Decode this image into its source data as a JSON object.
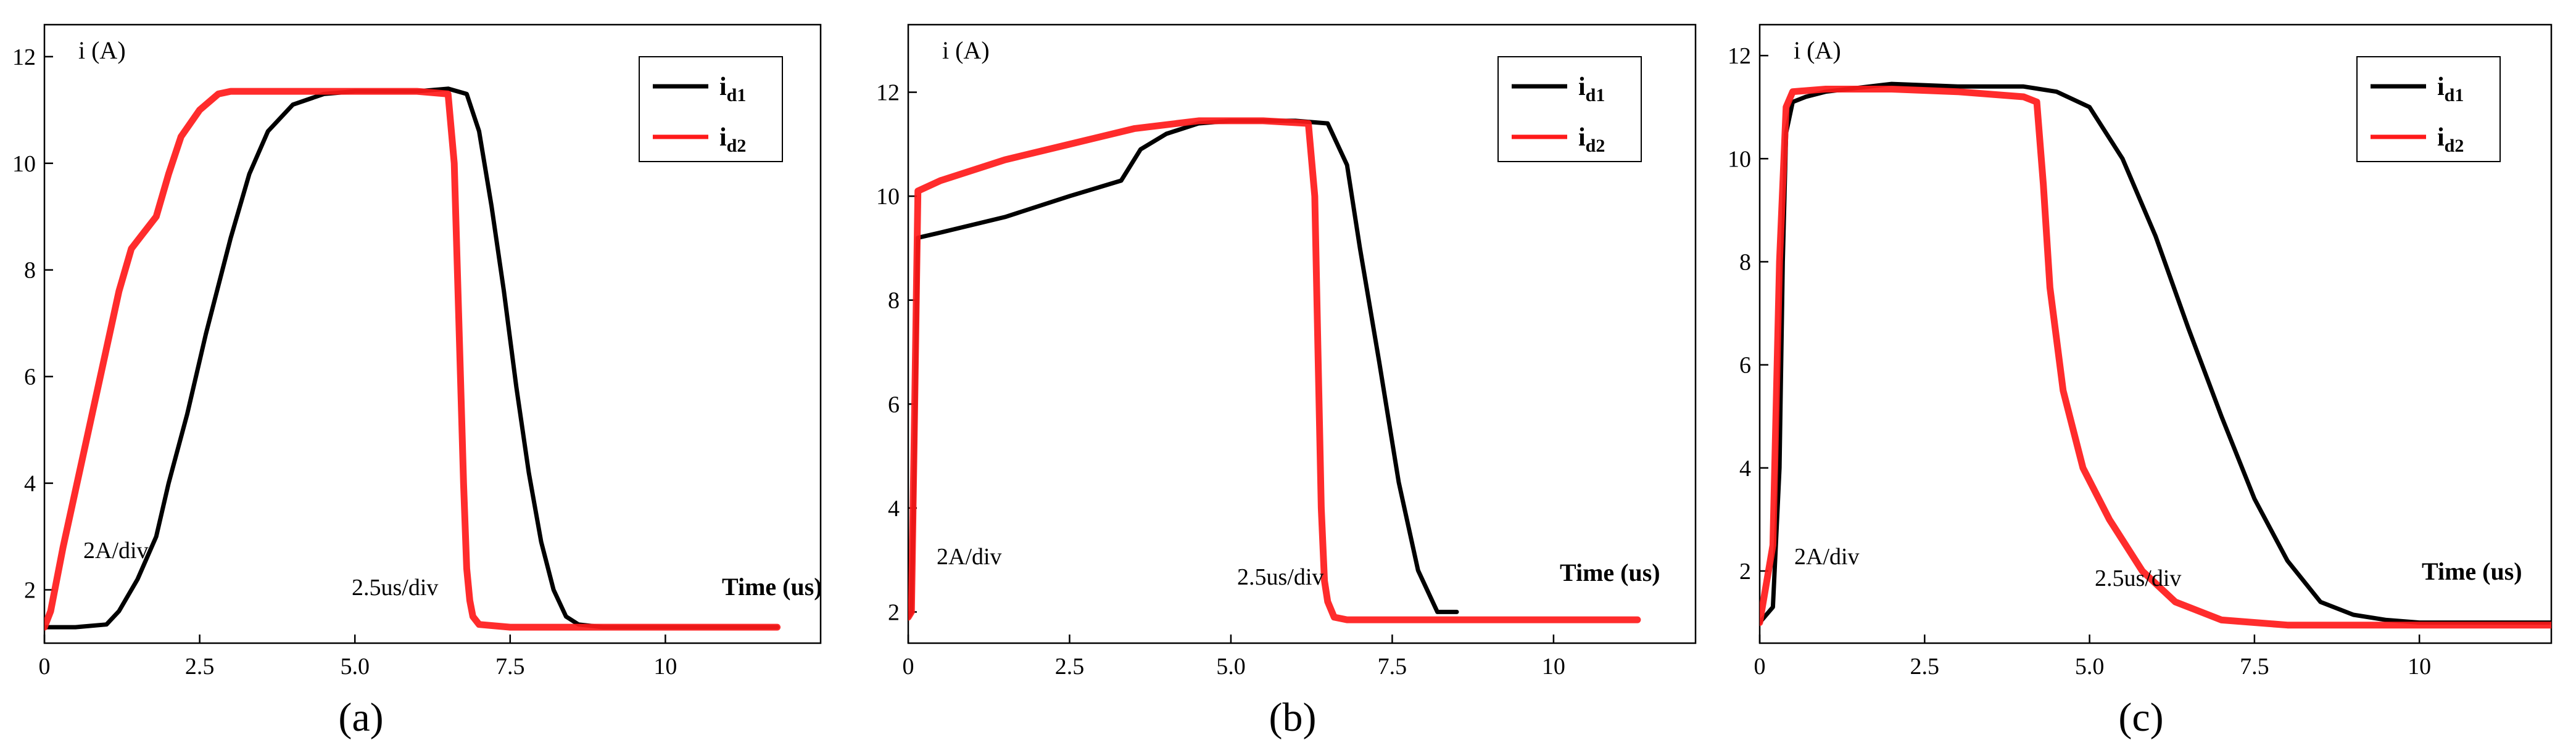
{
  "figure": {
    "label_color": "#000000",
    "series_colors": {
      "id1": "#000000",
      "id2": "#ff1a1a"
    }
  },
  "chart_data": [
    {
      "type": "line",
      "panel_label": "(a)",
      "ylabel": "i (A)",
      "xlabel": "Time (us)",
      "annotations": {
        "y_scale": "2A/div",
        "x_scale": "2.5us/div"
      },
      "xlim": [
        0,
        12.5
      ],
      "ylim": [
        1.0,
        12.6
      ],
      "xticks": [
        0,
        2.5,
        5.0,
        7.5,
        10
      ],
      "xtick_labels": [
        "0",
        "2.5",
        "5.0",
        "7.5",
        "10"
      ],
      "yticks": [
        2,
        4,
        6,
        8,
        10,
        12
      ],
      "ytick_labels": [
        "2",
        "4",
        "6",
        "8",
        "10",
        "12"
      ],
      "legend": [
        {
          "main": "i",
          "sub": "d1",
          "color": "#000000"
        },
        {
          "main": "i",
          "sub": "d2",
          "color": "#ff1a1a"
        }
      ],
      "series": [
        {
          "name": "id1",
          "color": "#000000",
          "x": [
            0,
            0.5,
            1.0,
            1.2,
            1.5,
            1.8,
            2.0,
            2.3,
            2.6,
            3.0,
            3.3,
            3.6,
            4.0,
            4.5,
            5.0,
            6.0,
            6.5,
            6.8,
            7.0,
            7.2,
            7.4,
            7.6,
            7.8,
            8.0,
            8.2,
            8.4,
            8.6,
            9.0,
            10.0,
            11.0,
            11.8
          ],
          "y": [
            1.3,
            1.3,
            1.35,
            1.6,
            2.2,
            3.0,
            4.0,
            5.3,
            6.8,
            8.6,
            9.8,
            10.6,
            11.1,
            11.3,
            11.35,
            11.35,
            11.4,
            11.3,
            10.6,
            9.2,
            7.6,
            5.8,
            4.2,
            2.9,
            2.0,
            1.5,
            1.35,
            1.3,
            1.3,
            1.3,
            1.3
          ]
        },
        {
          "name": "id2",
          "color": "#ff1a1a",
          "x": [
            0,
            0.1,
            0.3,
            0.6,
            0.9,
            1.2,
            1.4,
            1.6,
            1.8,
            2.0,
            2.2,
            2.5,
            2.8,
            3.0,
            4.0,
            5.0,
            6.0,
            6.5,
            6.6,
            6.7,
            6.75,
            6.8,
            6.85,
            6.9,
            7.0,
            7.5,
            8.0,
            9.0,
            10.0,
            11.8
          ],
          "y": [
            1.3,
            1.6,
            2.8,
            4.4,
            6.0,
            7.6,
            8.4,
            8.7,
            9.0,
            9.8,
            10.5,
            11.0,
            11.3,
            11.35,
            11.35,
            11.35,
            11.35,
            11.3,
            10.0,
            6.0,
            4.0,
            2.4,
            1.8,
            1.5,
            1.35,
            1.3,
            1.3,
            1.3,
            1.3,
            1.3
          ]
        }
      ]
    },
    {
      "type": "line",
      "panel_label": "(b)",
      "ylabel": "i (A)",
      "xlabel": "Time (us)",
      "annotations": {
        "y_scale": "2A/div",
        "x_scale": "2.5us/div"
      },
      "xlim": [
        0,
        12.2
      ],
      "ylim": [
        1.4,
        13.3
      ],
      "xticks": [
        0,
        2.5,
        5.0,
        7.5,
        10
      ],
      "xtick_labels": [
        "0",
        "2.5",
        "5.0",
        "7.5",
        "10"
      ],
      "yticks": [
        2,
        4,
        6,
        8,
        10,
        12
      ],
      "ytick_labels": [
        "2",
        "4",
        "6",
        "8",
        "10",
        "12"
      ],
      "legend": [
        {
          "main": "i",
          "sub": "d1",
          "color": "#000000"
        },
        {
          "main": "i",
          "sub": "d2",
          "color": "#ff1a1a"
        }
      ],
      "series": [
        {
          "name": "id1",
          "color": "#000000",
          "x": [
            0,
            0.05,
            0.1,
            0.15,
            0.5,
            1.5,
            2.5,
            3.3,
            3.6,
            4.0,
            4.5,
            5.0,
            6.0,
            6.5,
            6.8,
            7.0,
            7.3,
            7.6,
            7.9,
            8.2,
            8.5
          ],
          "y": [
            1.9,
            2.0,
            5.0,
            9.2,
            9.3,
            9.6,
            10.0,
            10.3,
            10.9,
            11.2,
            11.4,
            11.45,
            11.45,
            11.4,
            10.6,
            9.0,
            6.8,
            4.5,
            2.8,
            2.0,
            2.0
          ]
        },
        {
          "name": "id2",
          "color": "#ff1a1a",
          "x": [
            0,
            0.05,
            0.1,
            0.15,
            0.5,
            1.5,
            2.5,
            3.5,
            4.5,
            5.5,
            6.2,
            6.3,
            6.35,
            6.4,
            6.45,
            6.5,
            6.6,
            6.8,
            7.0,
            8.0,
            9.0,
            10.0,
            11.3
          ],
          "y": [
            1.9,
            2.0,
            6.0,
            10.1,
            10.3,
            10.7,
            11.0,
            11.3,
            11.45,
            11.45,
            11.4,
            10.0,
            7.0,
            4.0,
            2.6,
            2.2,
            1.9,
            1.85,
            1.85,
            1.85,
            1.85,
            1.85,
            1.85
          ]
        }
      ]
    },
    {
      "type": "line",
      "panel_label": "(c)",
      "ylabel": "i (A)",
      "xlabel": "Time (us)",
      "annotations": {
        "y_scale": "2A/div",
        "x_scale": "2.5us/div"
      },
      "xlim": [
        0,
        12.0
      ],
      "ylim": [
        0.6,
        12.6
      ],
      "xticks": [
        0,
        2.5,
        5.0,
        7.5,
        10
      ],
      "xtick_labels": [
        "0",
        "2.5",
        "5.0",
        "7.5",
        "10"
      ],
      "yticks": [
        2,
        4,
        6,
        8,
        10,
        12
      ],
      "ytick_labels": [
        "2",
        "4",
        "6",
        "8",
        "10",
        "12"
      ],
      "legend": [
        {
          "main": "i",
          "sub": "d1",
          "color": "#000000"
        },
        {
          "main": "i",
          "sub": "d2",
          "color": "#ff1a1a"
        }
      ],
      "series": [
        {
          "name": "id1",
          "color": "#000000",
          "x": [
            0,
            0.2,
            0.3,
            0.35,
            0.4,
            0.5,
            0.7,
            1.0,
            2.0,
            3.0,
            4.0,
            4.5,
            5.0,
            5.5,
            6.0,
            6.5,
            7.0,
            7.5,
            8.0,
            8.5,
            9.0,
            9.5,
            10.0,
            11.0,
            12.0
          ],
          "y": [
            1.0,
            1.3,
            4.0,
            8.0,
            10.5,
            11.1,
            11.2,
            11.3,
            11.45,
            11.4,
            11.4,
            11.3,
            11.0,
            10.0,
            8.5,
            6.7,
            5.0,
            3.4,
            2.2,
            1.4,
            1.15,
            1.05,
            1.0,
            1.0,
            1.0
          ]
        },
        {
          "name": "id2",
          "color": "#ff1a1a",
          "x": [
            0,
            0.2,
            0.3,
            0.4,
            0.5,
            1.0,
            2.0,
            3.0,
            4.0,
            4.2,
            4.3,
            4.4,
            4.6,
            4.9,
            5.3,
            5.8,
            6.3,
            7.0,
            8.0,
            9.0,
            10.0,
            11.0,
            12.0
          ],
          "y": [
            1.0,
            2.5,
            8.0,
            11.0,
            11.3,
            11.35,
            11.35,
            11.3,
            11.2,
            11.1,
            9.5,
            7.5,
            5.5,
            4.0,
            3.0,
            2.0,
            1.4,
            1.05,
            0.95,
            0.95,
            0.95,
            0.95,
            0.95
          ]
        }
      ]
    }
  ]
}
